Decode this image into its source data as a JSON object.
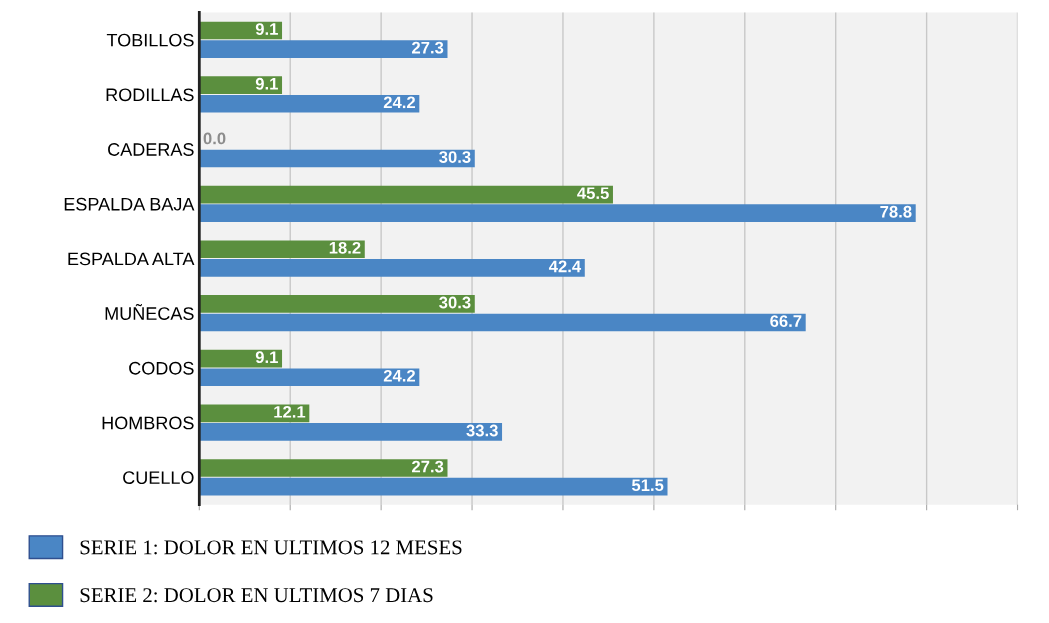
{
  "chart_data": {
    "type": "bar",
    "orientation": "horizontal",
    "categories": [
      "TOBILLOS",
      "RODILLAS",
      "CADERAS",
      "ESPALDA BAJA",
      "ESPALDA ALTA",
      "MUÑECAS",
      "CODOS",
      "HOMBROS",
      "CUELLO"
    ],
    "series": [
      {
        "name": "SERIE 1: DOLOR EN ULTIMOS 12 MESES",
        "color": "#4a86c5",
        "values": [
          27.3,
          24.2,
          30.3,
          78.8,
          42.4,
          66.7,
          24.2,
          33.3,
          51.5
        ],
        "value_labels": [
          "27.3",
          "24.2",
          "30.3",
          "78.8",
          "42.4",
          "66.7",
          "24.2",
          "33.3",
          "51.5"
        ]
      },
      {
        "name": "SERIE 2: DOLOR EN ULTIMOS 7 DIAS",
        "color": "#5b8f3e",
        "values": [
          9.1,
          9.1,
          0,
          45.5,
          18.2,
          30.3,
          9.1,
          12.1,
          27.3
        ],
        "value_labels": [
          "9.1",
          "9.1",
          "0.0",
          "45.5",
          "18.2",
          "30.3",
          "9.1",
          "12.1",
          "27.3"
        ]
      }
    ],
    "xlim": [
      0,
      90
    ],
    "xticks": [
      {
        "value": 0,
        "label": null
      },
      {
        "value": 10,
        "label": null
      },
      {
        "value": 20,
        "label": null
      },
      {
        "value": 30,
        "label": null
      },
      {
        "value": 40,
        "label": null
      },
      {
        "value": 50,
        "label": null
      },
      {
        "value": 60,
        "label": null
      },
      {
        "value": 70,
        "label": null
      },
      {
        "value": 80,
        "label": null
      },
      {
        "value": 90,
        "label": null
      }
    ],
    "grid": "x",
    "tick_labels": "y",
    "legend": "bottom"
  }
}
